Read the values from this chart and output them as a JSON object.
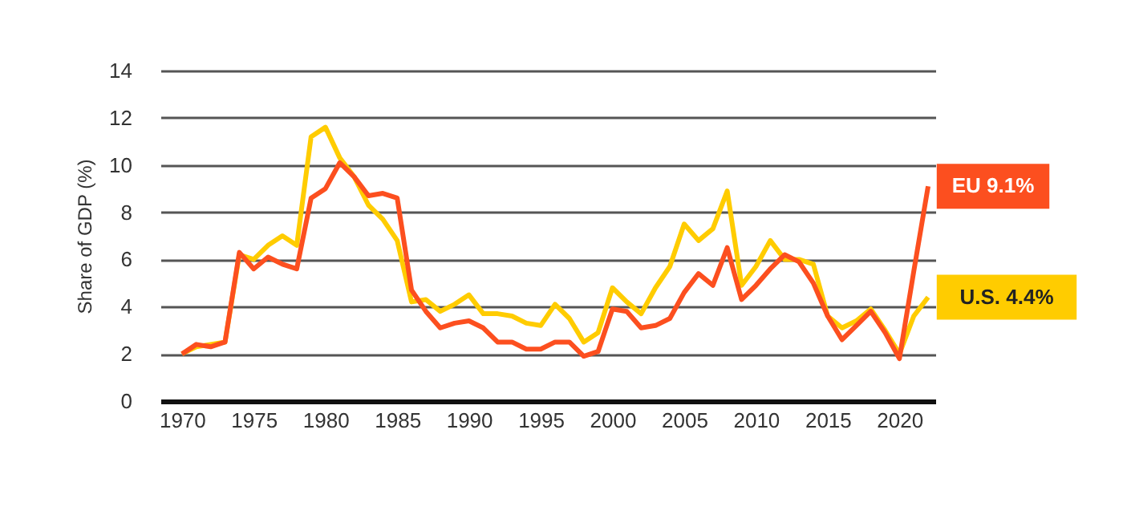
{
  "chart_data": {
    "type": "line",
    "ylabel": "Share of GDP (%)",
    "x": [
      1970,
      1971,
      1972,
      1973,
      1974,
      1975,
      1976,
      1977,
      1978,
      1979,
      1980,
      1981,
      1982,
      1983,
      1984,
      1985,
      1986,
      1987,
      1988,
      1989,
      1990,
      1991,
      1992,
      1993,
      1994,
      1995,
      1996,
      1997,
      1998,
      1999,
      2000,
      2001,
      2002,
      2003,
      2004,
      2005,
      2006,
      2007,
      2008,
      2009,
      2010,
      2011,
      2012,
      2013,
      2014,
      2015,
      2016,
      2017,
      2018,
      2019,
      2020,
      2021,
      2022
    ],
    "series": [
      {
        "name": "U.S. 4.4%",
        "color": "#ffcc00",
        "values": [
          2.0,
          2.3,
          2.4,
          2.5,
          6.2,
          6.0,
          6.6,
          7.0,
          6.6,
          11.2,
          11.6,
          10.3,
          9.5,
          8.3,
          7.7,
          6.8,
          4.2,
          4.3,
          3.8,
          4.1,
          4.5,
          3.7,
          3.7,
          3.6,
          3.3,
          3.2,
          4.1,
          3.5,
          2.5,
          2.9,
          4.8,
          4.2,
          3.7,
          4.8,
          5.7,
          7.5,
          6.8,
          7.3,
          8.9,
          4.9,
          5.7,
          6.8,
          6.0,
          6.0,
          5.8,
          3.6,
          3.1,
          3.4,
          3.9,
          3.0,
          2.0,
          3.6,
          4.4
        ]
      },
      {
        "name": "EU 9.1%",
        "color": "#fc4f1f",
        "values": [
          2.0,
          2.4,
          2.3,
          2.5,
          6.3,
          5.6,
          6.1,
          5.8,
          5.6,
          8.6,
          9.0,
          10.1,
          9.5,
          8.7,
          8.8,
          8.6,
          4.7,
          3.8,
          3.1,
          3.3,
          3.4,
          3.1,
          2.5,
          2.5,
          2.2,
          2.2,
          2.5,
          2.5,
          1.9,
          2.1,
          3.9,
          3.8,
          3.1,
          3.2,
          3.5,
          4.6,
          5.4,
          4.9,
          6.5,
          4.3,
          4.9,
          5.6,
          6.2,
          5.9,
          5.0,
          3.6,
          2.6,
          3.2,
          3.8,
          2.9,
          1.8,
          5.5,
          9.1
        ]
      }
    ],
    "xlim": [
      1968.5,
      2022.5
    ],
    "xticks": [
      1970,
      1975,
      1980,
      1985,
      1990,
      1995,
      2000,
      2005,
      2010,
      2015,
      2020
    ],
    "ylim": [
      0,
      14
    ],
    "yticks": [
      0,
      2,
      4,
      6,
      8,
      10,
      12,
      14
    ],
    "grid": "y",
    "legend": false
  }
}
